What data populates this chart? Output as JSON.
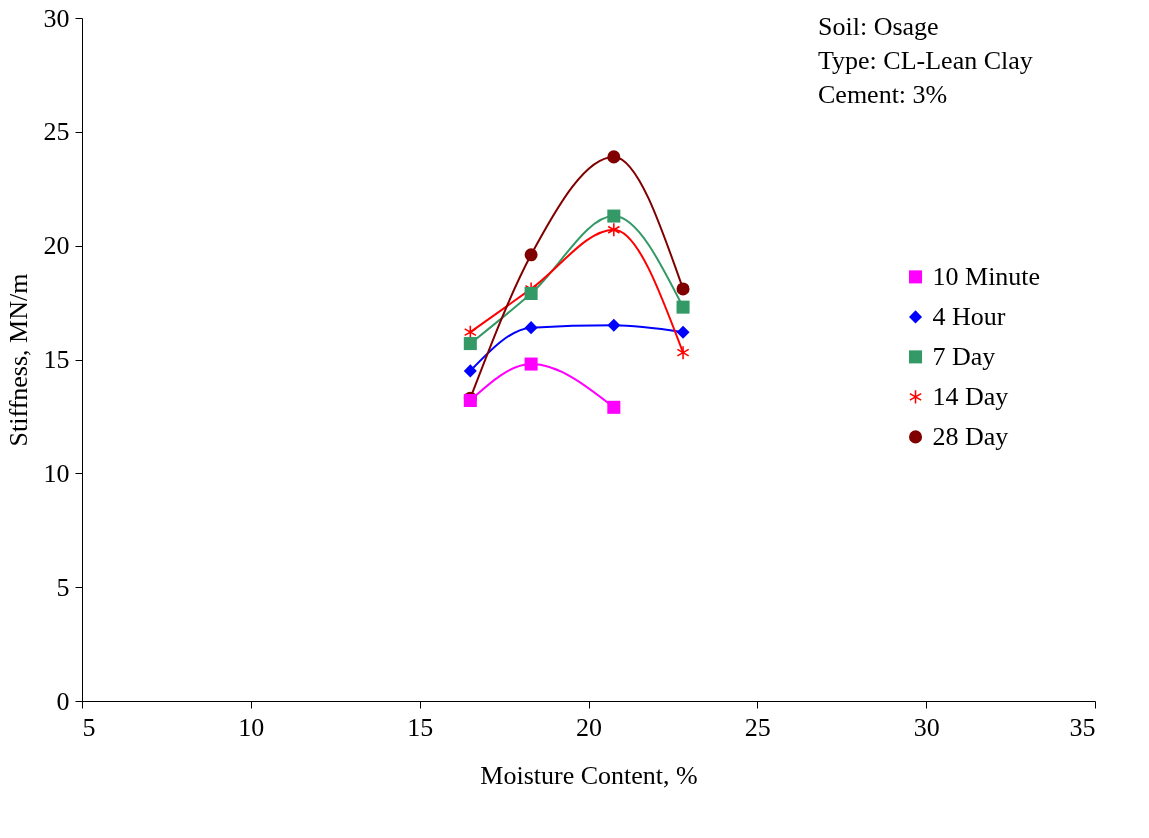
{
  "chart_data": {
    "type": "line",
    "xlabel": "Moisture Content, %",
    "ylabel": "Stiffness, MN/m",
    "xlim": [
      5,
      35
    ],
    "xticks": [
      5,
      10,
      15,
      20,
      25,
      30,
      35
    ],
    "ylim": [
      0,
      30
    ],
    "yticks": [
      0,
      5,
      10,
      15,
      20,
      25,
      30
    ],
    "grid": false,
    "legend": "right",
    "annotations": [
      "Soil: Osage",
      "Type: CL-Lean Clay",
      "Cement: 3%"
    ],
    "series": [
      {
        "name": "10 Minute",
        "color": "#ff00ff",
        "marker": "square",
        "x": [
          16.5,
          18.3,
          20.75
        ],
        "values": [
          13.2,
          14.8,
          12.9
        ]
      },
      {
        "name": "4 Hour",
        "color": "#0000ff",
        "marker": "diamond",
        "x": [
          16.5,
          18.3,
          20.75,
          22.8
        ],
        "values": [
          14.5,
          16.4,
          16.5,
          16.2
        ]
      },
      {
        "name": "7 Day",
        "color": "#339966",
        "marker": "square",
        "x": [
          16.5,
          18.3,
          20.75,
          22.8
        ],
        "values": [
          15.7,
          17.9,
          21.3,
          17.3
        ]
      },
      {
        "name": "14 Day",
        "color": "#ff0000",
        "marker": "cross",
        "x": [
          16.5,
          18.3,
          20.75,
          22.8
        ],
        "values": [
          16.2,
          18.1,
          20.7,
          15.3
        ]
      },
      {
        "name": "28 Day",
        "color": "#800000",
        "marker": "circle",
        "x": [
          16.5,
          18.3,
          20.75,
          22.8
        ],
        "values": [
          13.3,
          19.6,
          23.9,
          18.1
        ]
      }
    ]
  }
}
